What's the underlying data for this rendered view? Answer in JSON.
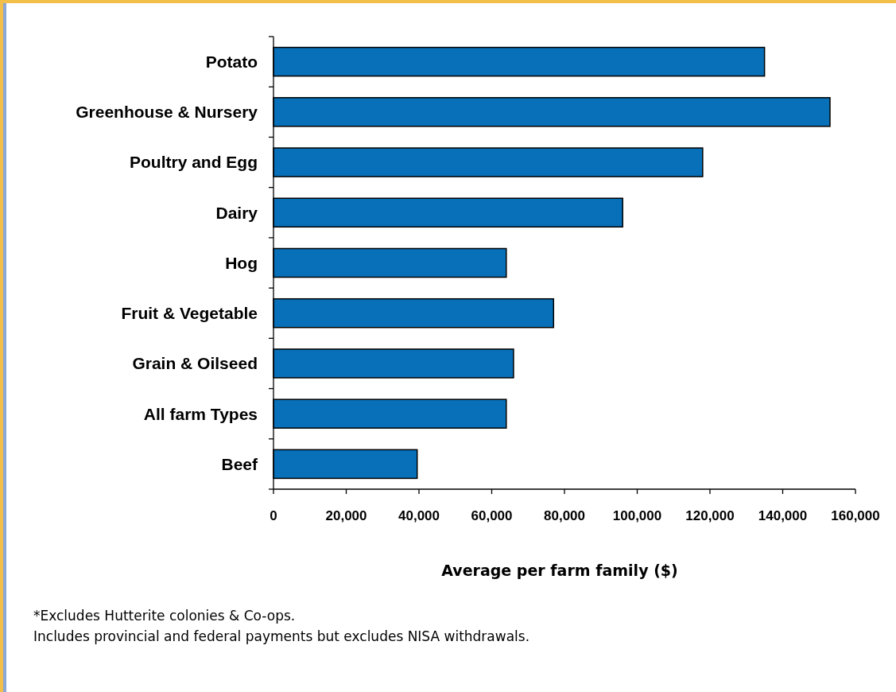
{
  "chart_data": {
    "type": "bar",
    "orientation": "horizontal",
    "categories": [
      "Potato",
      "Greenhouse & Nursery",
      "Poultry and Egg",
      "Dairy",
      "Hog",
      "Fruit & Vegetable",
      "Grain & Oilseed",
      "All farm Types",
      "Beef"
    ],
    "values": [
      135000,
      153000,
      118000,
      96000,
      64000,
      77000,
      66000,
      64000,
      39500
    ],
    "color": "#0870b8",
    "xlabel": "Average per farm family ($)",
    "xlim": [
      0,
      160000
    ],
    "xticks": [
      0,
      {
        "value": 20000,
        "label": "20,000"
      },
      {
        "value": 40000,
        "label": "40,000"
      },
      {
        "value": 60000,
        "label": "60,000"
      },
      {
        "value": 80000,
        "label": "80,000"
      },
      {
        "value": 100000,
        "label": "100,000"
      },
      {
        "value": 120000,
        "label": "120,000"
      },
      {
        "value": 140000,
        "label": "140,000"
      },
      {
        "value": 160000,
        "label": "160,000"
      }
    ],
    "grid": false,
    "annotations": [
      "*Excludes Hutterite colonies & Co-ops.",
      "Includes provincial and federal payments but excludes NISA withdrawals."
    ]
  }
}
